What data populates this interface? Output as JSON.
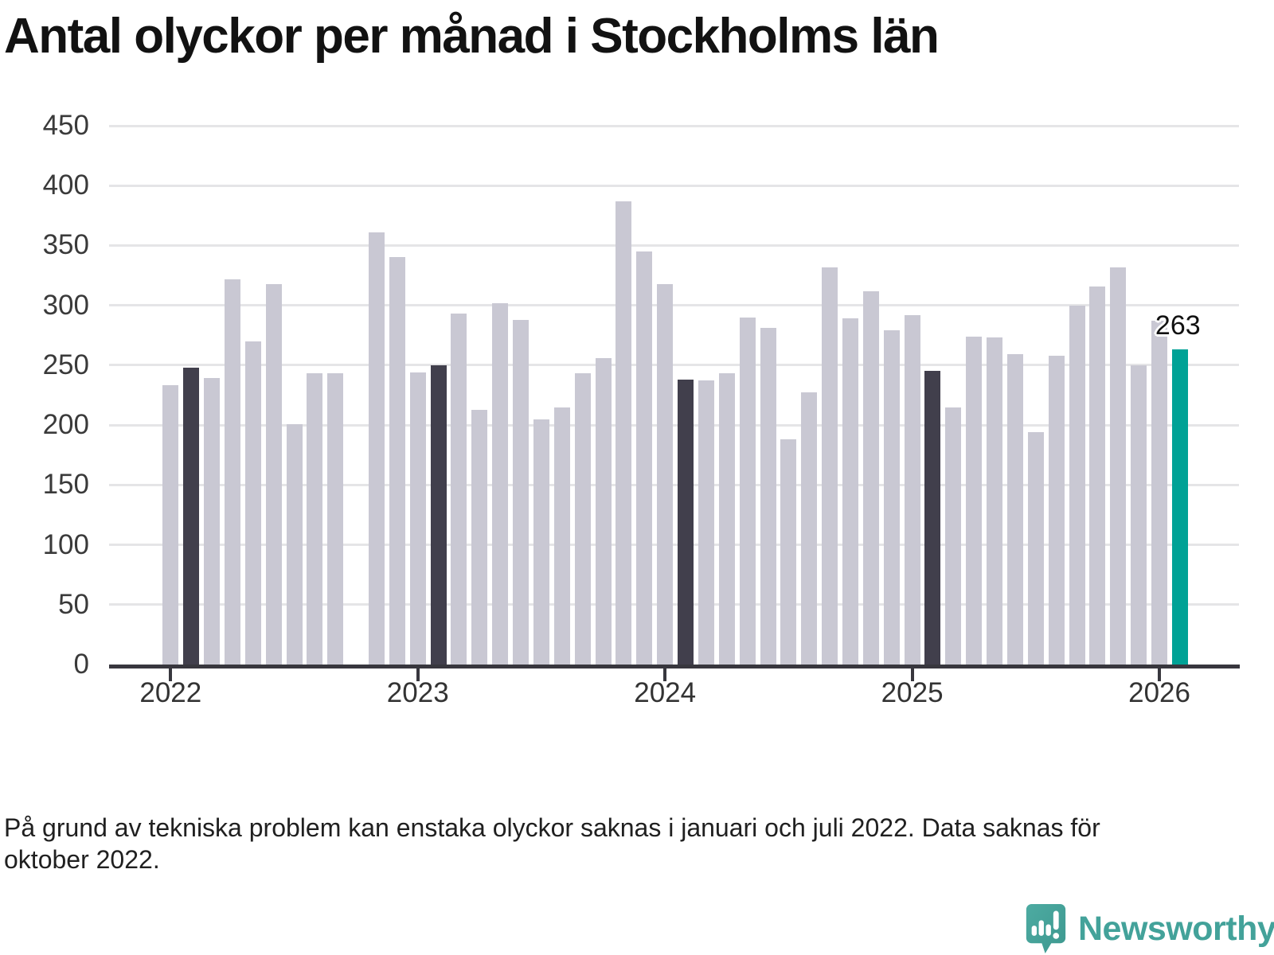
{
  "title": "Antal olyckor per månad i Stockholms län",
  "footnote": {
    "line1": "På grund av tekniska problem kan enstaka olyckor saknas i januari och juli 2022. Data saknas för",
    "line2": "oktober 2022."
  },
  "annotation": {
    "value_label": "263"
  },
  "brand": {
    "name": "Newsworthy",
    "icon": "newsworthy-speech-bubble-bar-chart-icon"
  },
  "colors": {
    "bar_default": "#c9c8d3",
    "bar_highlight": "#413f4c",
    "bar_accent": "#00a296",
    "gridline": "#e5e5e7",
    "axis": "#38373e",
    "title_text": "#121212",
    "tick_label": "#3a3a3a",
    "footnote_text": "#202020",
    "logo_teal": "#43a29a"
  },
  "chart_data": {
    "type": "bar",
    "title": "Antal olyckor per månad i Stockholms län",
    "xlabel": "",
    "ylabel": "",
    "ylim": [
      0,
      450
    ],
    "yticks": [
      0,
      50,
      100,
      150,
      200,
      250,
      300,
      350,
      400,
      450
    ],
    "grid": true,
    "legend": false,
    "x_unit": "month",
    "x_year_ticks": [
      {
        "label": "2022",
        "month_index": 0
      },
      {
        "label": "2023",
        "month_index": 12
      },
      {
        "label": "2024",
        "month_index": 24
      },
      {
        "label": "2025",
        "month_index": 36
      },
      {
        "label": "2026",
        "month_index": 48
      }
    ],
    "series": [
      {
        "name": "Antal olyckor per månad",
        "points": [
          {
            "x": "2022-01",
            "value": 233,
            "role": "default"
          },
          {
            "x": "2022-02",
            "value": 248,
            "role": "highlight"
          },
          {
            "x": "2022-03",
            "value": 239,
            "role": "default"
          },
          {
            "x": "2022-04",
            "value": 322,
            "role": "default"
          },
          {
            "x": "2022-05",
            "value": 270,
            "role": "default"
          },
          {
            "x": "2022-06",
            "value": 318,
            "role": "default"
          },
          {
            "x": "2022-07",
            "value": 201,
            "role": "default"
          },
          {
            "x": "2022-08",
            "value": 243,
            "role": "default"
          },
          {
            "x": "2022-09",
            "value": 243,
            "role": "default"
          },
          {
            "x": "2022-10",
            "value": null,
            "role": "default"
          },
          {
            "x": "2022-11",
            "value": 361,
            "role": "default"
          },
          {
            "x": "2022-12",
            "value": 340,
            "role": "default"
          },
          {
            "x": "2023-01",
            "value": 244,
            "role": "default"
          },
          {
            "x": "2023-02",
            "value": 250,
            "role": "highlight"
          },
          {
            "x": "2023-03",
            "value": 293,
            "role": "default"
          },
          {
            "x": "2023-04",
            "value": 213,
            "role": "default"
          },
          {
            "x": "2023-05",
            "value": 302,
            "role": "default"
          },
          {
            "x": "2023-06",
            "value": 288,
            "role": "default"
          },
          {
            "x": "2023-07",
            "value": 205,
            "role": "default"
          },
          {
            "x": "2023-08",
            "value": 215,
            "role": "default"
          },
          {
            "x": "2023-09",
            "value": 243,
            "role": "default"
          },
          {
            "x": "2023-10",
            "value": 256,
            "role": "default"
          },
          {
            "x": "2023-11",
            "value": 387,
            "role": "default"
          },
          {
            "x": "2023-12",
            "value": 345,
            "role": "default"
          },
          {
            "x": "2024-01",
            "value": 318,
            "role": "default"
          },
          {
            "x": "2024-02",
            "value": 238,
            "role": "highlight"
          },
          {
            "x": "2024-03",
            "value": 237,
            "role": "default"
          },
          {
            "x": "2024-04",
            "value": 243,
            "role": "default"
          },
          {
            "x": "2024-05",
            "value": 290,
            "role": "default"
          },
          {
            "x": "2024-06",
            "value": 281,
            "role": "default"
          },
          {
            "x": "2024-07",
            "value": 188,
            "role": "default"
          },
          {
            "x": "2024-08",
            "value": 227,
            "role": "default"
          },
          {
            "x": "2024-09",
            "value": 332,
            "role": "default"
          },
          {
            "x": "2024-10",
            "value": 289,
            "role": "default"
          },
          {
            "x": "2024-11",
            "value": 312,
            "role": "default"
          },
          {
            "x": "2024-12",
            "value": 279,
            "role": "default"
          },
          {
            "x": "2025-01",
            "value": 292,
            "role": "default"
          },
          {
            "x": "2025-02",
            "value": 245,
            "role": "highlight"
          },
          {
            "x": "2025-03",
            "value": 215,
            "role": "default"
          },
          {
            "x": "2025-04",
            "value": 274,
            "role": "default"
          },
          {
            "x": "2025-05",
            "value": 273,
            "role": "default"
          },
          {
            "x": "2025-06",
            "value": 259,
            "role": "default"
          },
          {
            "x": "2025-07",
            "value": 194,
            "role": "default"
          },
          {
            "x": "2025-08",
            "value": 258,
            "role": "default"
          },
          {
            "x": "2025-09",
            "value": 300,
            "role": "default"
          },
          {
            "x": "2025-10",
            "value": 316,
            "role": "default"
          },
          {
            "x": "2025-11",
            "value": 332,
            "role": "default"
          },
          {
            "x": "2025-12",
            "value": 250,
            "role": "default"
          },
          {
            "x": "2026-01",
            "value": 287,
            "role": "default"
          },
          {
            "x": "2026-02",
            "value": 263,
            "role": "accent"
          }
        ]
      }
    ]
  }
}
